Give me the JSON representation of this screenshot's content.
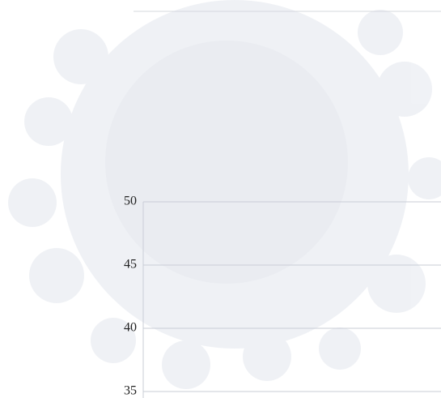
{
  "chart_data": {
    "type": "line",
    "ylim": [
      35,
      50
    ],
    "yticks": [
      35,
      40,
      45,
      50
    ],
    "grid": true
  }
}
